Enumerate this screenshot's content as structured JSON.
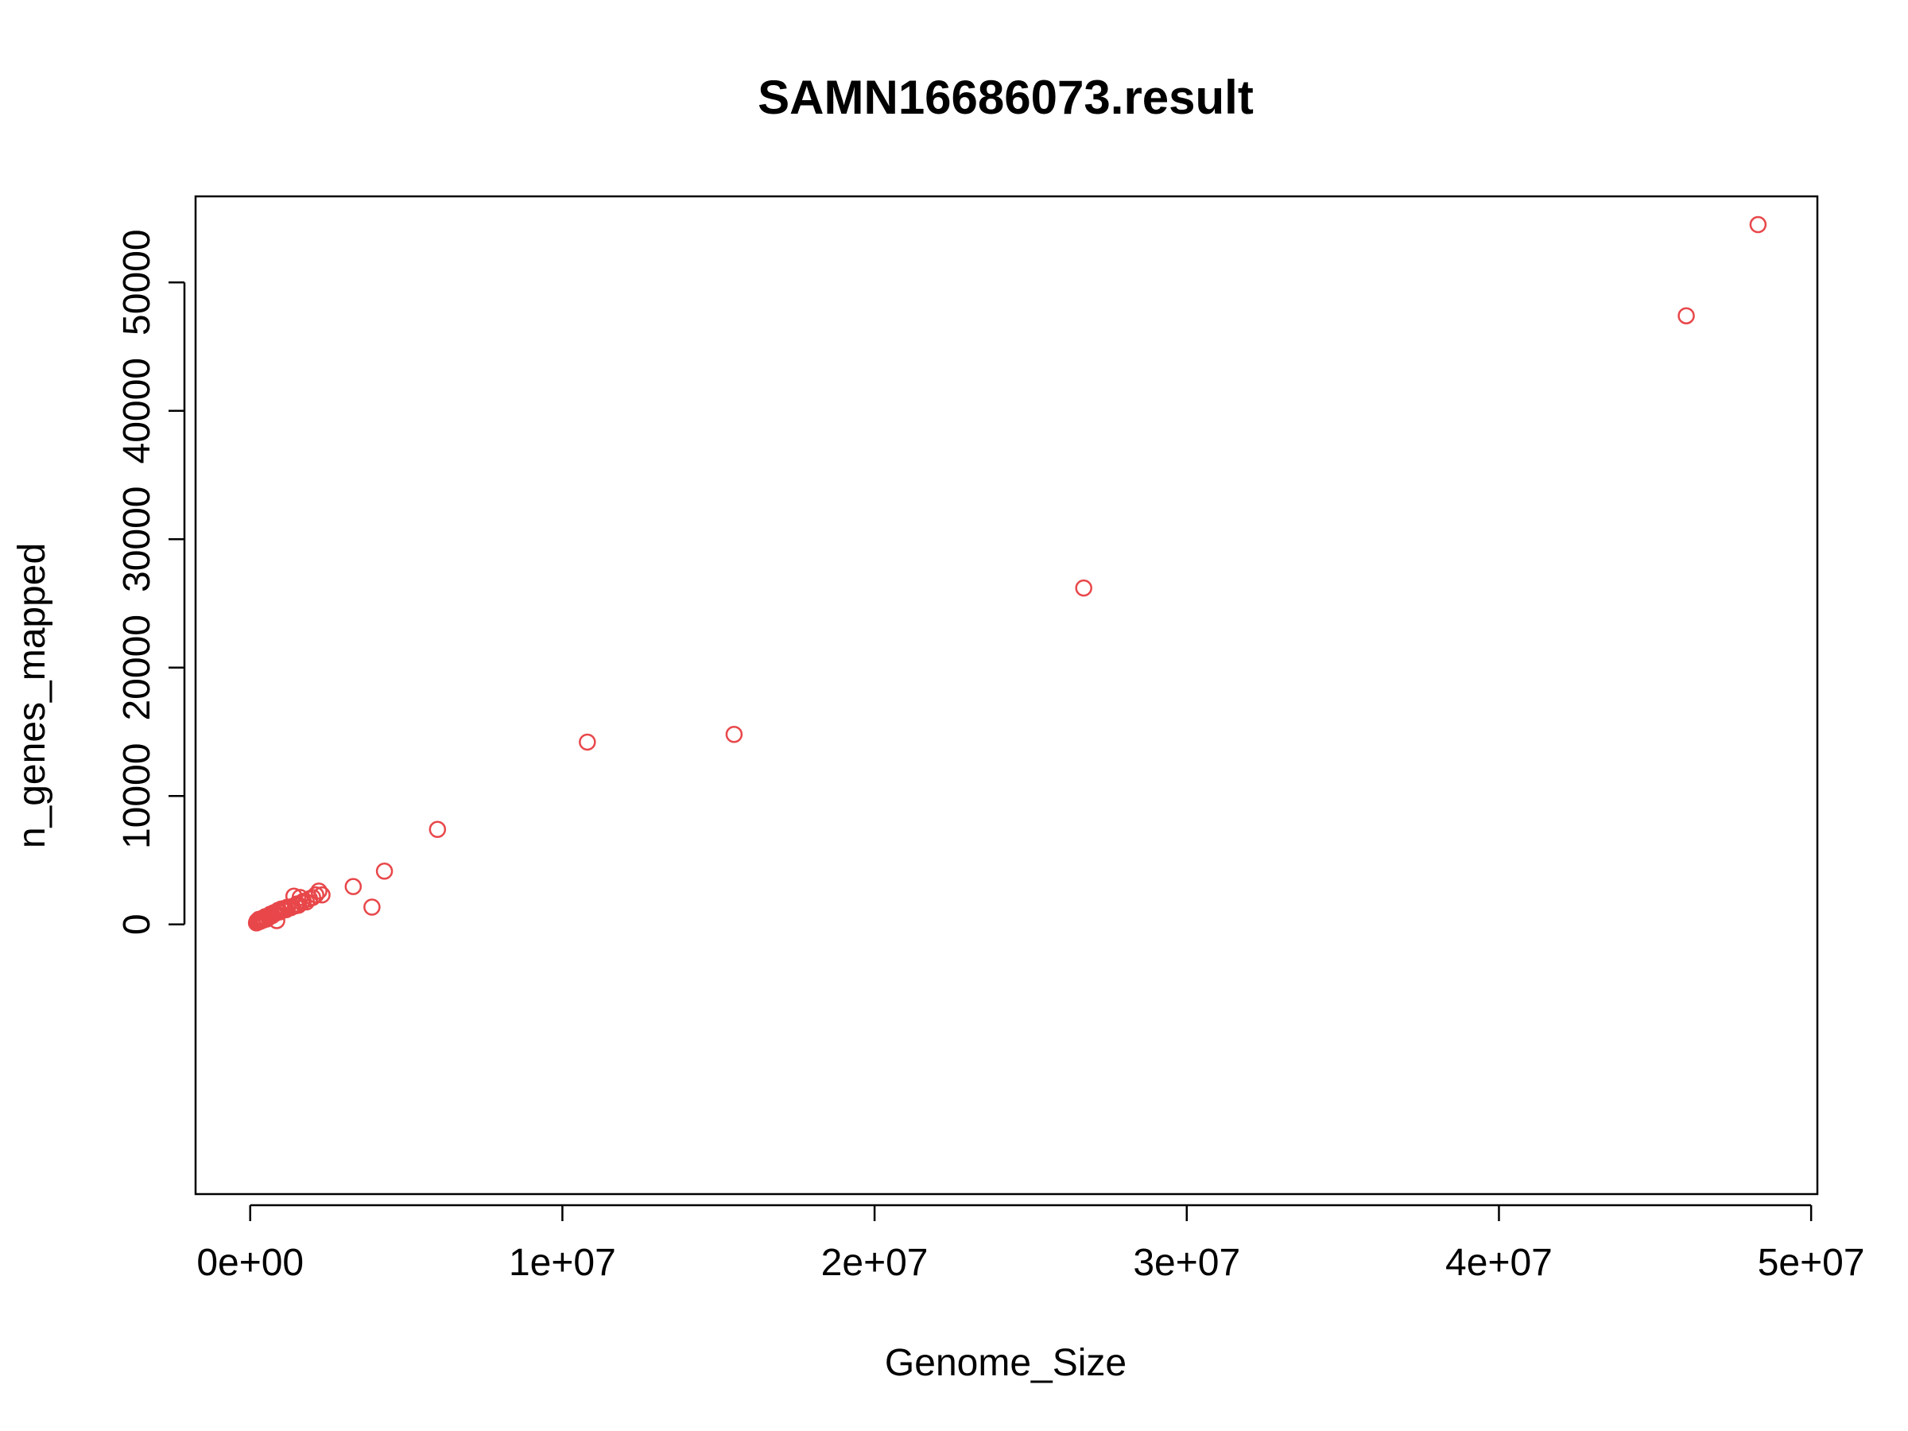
{
  "chart_data": {
    "type": "scatter",
    "title": "SAMN16686073.result",
    "xlabel": "Genome_Size",
    "ylabel": "n_genes_mapped",
    "xlim": [
      -1750000,
      50200000
    ],
    "ylim": [
      -21000.0,
      56700
    ],
    "xticks": [
      0,
      10000000,
      20000000,
      30000000,
      40000000,
      50000000
    ],
    "xtick_labels": [
      "0e+00",
      "1e+07",
      "2e+07",
      "3e+07",
      "4e+07",
      "5e+07"
    ],
    "yticks": [
      0,
      10000,
      20000,
      30000,
      40000,
      50000
    ],
    "ytick_labels": [
      "0",
      "10000",
      "20000",
      "30000",
      "40000",
      "50000"
    ],
    "grid": false,
    "point_color": "#E8474A",
    "series": [
      {
        "points": [
          [
            200000,
            120
          ],
          [
            220000,
            250
          ],
          [
            250000,
            180
          ],
          [
            260000,
            300
          ],
          [
            280000,
            400
          ],
          [
            300000,
            220
          ],
          [
            320000,
            350
          ],
          [
            350000,
            280
          ],
          [
            370000,
            450
          ],
          [
            400000,
            320
          ],
          [
            420000,
            500
          ],
          [
            450000,
            380
          ],
          [
            480000,
            600
          ],
          [
            500000,
            520
          ],
          [
            530000,
            420
          ],
          [
            560000,
            650
          ],
          [
            600000,
            560
          ],
          [
            620000,
            720
          ],
          [
            650000,
            800
          ],
          [
            700000,
            680
          ],
          [
            750000,
            900
          ],
          [
            780000,
            820
          ],
          [
            800000,
            950
          ],
          [
            850000,
            300
          ],
          [
            880000,
            1000
          ],
          [
            900000,
            1100
          ],
          [
            950000,
            980
          ],
          [
            1000000,
            1200
          ],
          [
            1050000,
            1100
          ],
          [
            1100000,
            1250
          ],
          [
            1150000,
            1150
          ],
          [
            1200000,
            1350
          ],
          [
            1300000,
            1300
          ],
          [
            1350000,
            1400
          ],
          [
            1400000,
            2200
          ],
          [
            1450000,
            1450
          ],
          [
            1500000,
            1600
          ],
          [
            1550000,
            1500
          ],
          [
            1600000,
            2100
          ],
          [
            1650000,
            1700
          ],
          [
            1700000,
            1800
          ],
          [
            1800000,
            1750
          ],
          [
            1900000,
            2000
          ],
          [
            2000000,
            2100
          ],
          [
            2100000,
            2300
          ],
          [
            2200000,
            2600
          ],
          [
            2300000,
            2300
          ],
          [
            3300000,
            2950
          ],
          [
            3900000,
            1350
          ],
          [
            4300000,
            4150
          ],
          [
            6000000,
            7400
          ],
          [
            10800000,
            14200
          ],
          [
            15500000,
            14800
          ],
          [
            26700000,
            26200
          ],
          [
            46000000,
            47400
          ],
          [
            48300000,
            54500
          ]
        ]
      }
    ]
  }
}
